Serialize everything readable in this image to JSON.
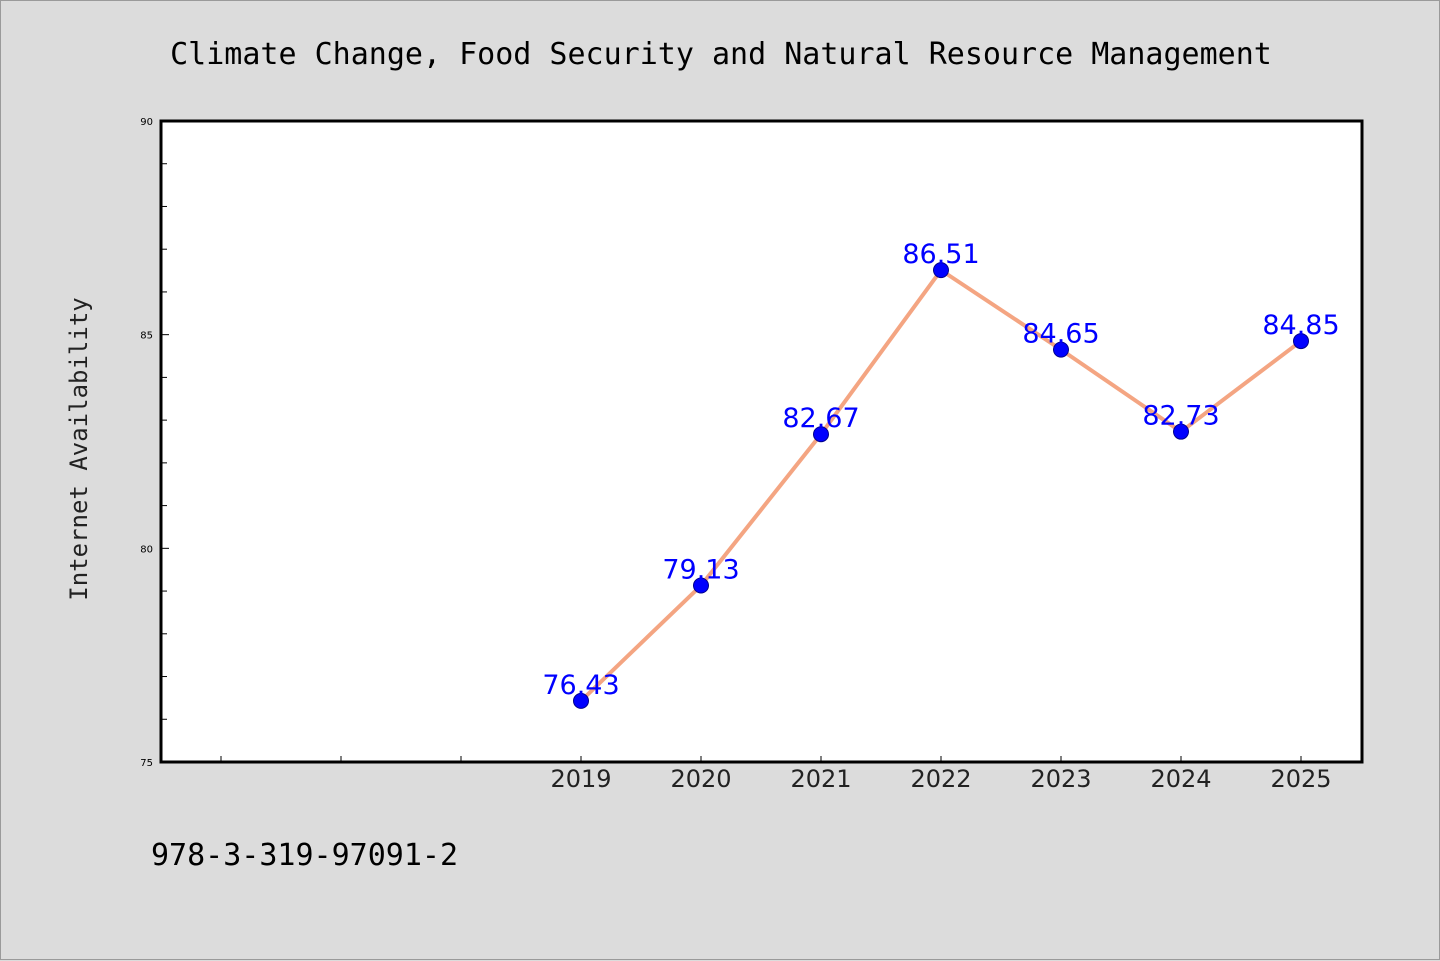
{
  "chart_data": {
    "type": "line",
    "title": "Climate Change, Food Security and Natural Resource Management",
    "ylabel": "Internet Availability",
    "xlabel": "",
    "x": [
      "2019",
      "2020",
      "2021",
      "2022",
      "2023",
      "2024",
      "2025"
    ],
    "series": [
      {
        "values": [
          76.43,
          79.13,
          82.67,
          86.51,
          84.65,
          82.73,
          84.85
        ],
        "line_color": "#f4a582",
        "marker_color": "#0000ff",
        "label_color": "#0000ff"
      }
    ],
    "data_labels": [
      "76.43",
      "79.13",
      "82.67",
      "86.51",
      "84.65",
      "82.73",
      "84.85"
    ],
    "ylim": [
      75,
      90
    ],
    "yticks": [
      "75",
      "80",
      "85",
      "90"
    ],
    "grid": false,
    "legend": "none"
  },
  "footer": {
    "isbn": "978-3-319-97091-2"
  },
  "colors": {
    "background": "#dcdcdc",
    "plot_background": "#ffffff"
  }
}
